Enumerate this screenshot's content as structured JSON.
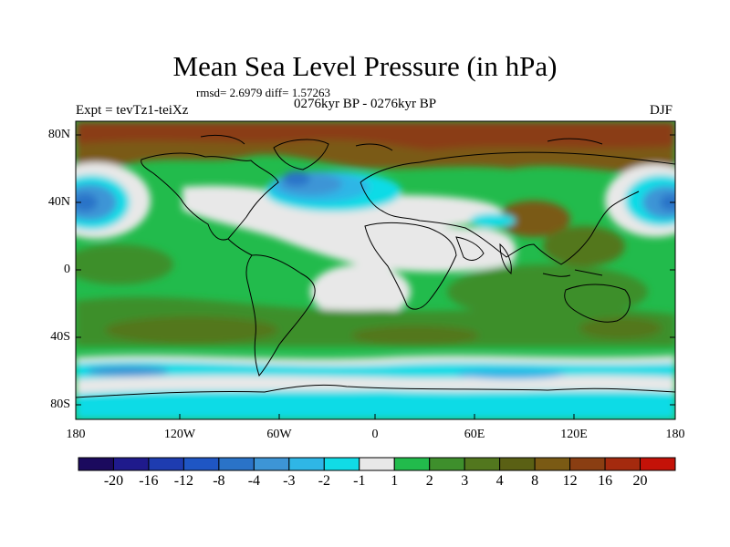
{
  "figure": {
    "title": "Mean Sea Level Pressure (in hPa)",
    "stats": "rmsd= 2.6979 diff= 1.57263",
    "experiment": "Expt = tevTz1-teiXz",
    "period": "0276kyr BP - 0276kyr BP",
    "season": "DJF"
  },
  "axes": {
    "lat_ticks": [
      "80N",
      "40N",
      "0",
      "40S",
      "80S"
    ],
    "lon_ticks": [
      "180",
      "120W",
      "60W",
      "0",
      "60E",
      "120E",
      "180"
    ]
  },
  "colorbar": {
    "colors": [
      "#1b0a5e",
      "#1f1a8c",
      "#1e3cb0",
      "#1f56c4",
      "#2a73c8",
      "#3d95d6",
      "#2fb6e6",
      "#11dbe6",
      "#e8e8e8",
      "#22bb4c",
      "#3e8f2c",
      "#52771e",
      "#5a6014",
      "#7a5a14",
      "#8a3e12",
      "#a42a0e",
      "#c41208"
    ],
    "labels": [
      "-20",
      "-16",
      "-12",
      "-8",
      "-4",
      "-3",
      "-2",
      "-1",
      "1",
      "2",
      "3",
      "4",
      "8",
      "12",
      "16",
      "20"
    ]
  }
}
